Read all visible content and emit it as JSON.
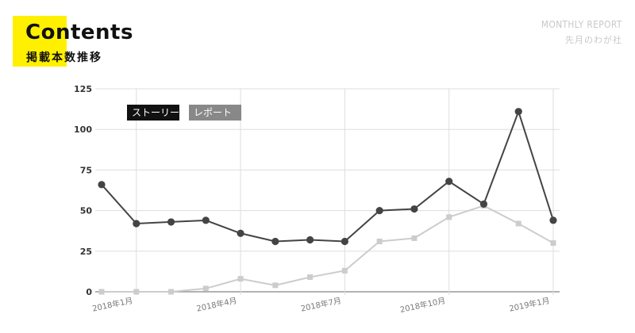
{
  "header": {
    "title": "Contents",
    "subtitle": "掲載本数推移",
    "report_title": "MONTHLY REPORT",
    "report_subtitle": "先月のわが社"
  },
  "colors": {
    "accent": "#fff000",
    "series_story": "#444444",
    "series_report": "#cccccc",
    "legend_story_bg": "#111111",
    "legend_report_bg": "#888888"
  },
  "chart_data": {
    "type": "line",
    "x": [
      "2017-12",
      "2018-01",
      "2018-02",
      "2018-03",
      "2018-04",
      "2018-05",
      "2018-06",
      "2018-07",
      "2018-08",
      "2018-09",
      "2018-10",
      "2018-11",
      "2018-12",
      "2019-01"
    ],
    "xticks": [
      {
        "x": "2018-01",
        "label": "2018年1月"
      },
      {
        "x": "2018-04",
        "label": "2018年4月"
      },
      {
        "x": "2018-07",
        "label": "2018年7月"
      },
      {
        "x": "2018-10",
        "label": "2018年10月"
      },
      {
        "x": "2019-01",
        "label": "2019年1月"
      }
    ],
    "ylim": [
      0,
      125
    ],
    "yticks": [
      0,
      25,
      50,
      75,
      100,
      125
    ],
    "grid": true,
    "legend_position": "top-left",
    "series": [
      {
        "name": "ストーリー",
        "marker": "circle",
        "values": [
          66,
          42,
          43,
          44,
          36,
          31,
          32,
          31,
          50,
          51,
          68,
          54,
          111,
          44
        ]
      },
      {
        "name": "レポート",
        "marker": "square",
        "values": [
          0,
          0,
          0,
          2,
          8,
          4,
          9,
          13,
          31,
          33,
          46,
          53,
          42,
          30
        ]
      }
    ]
  }
}
